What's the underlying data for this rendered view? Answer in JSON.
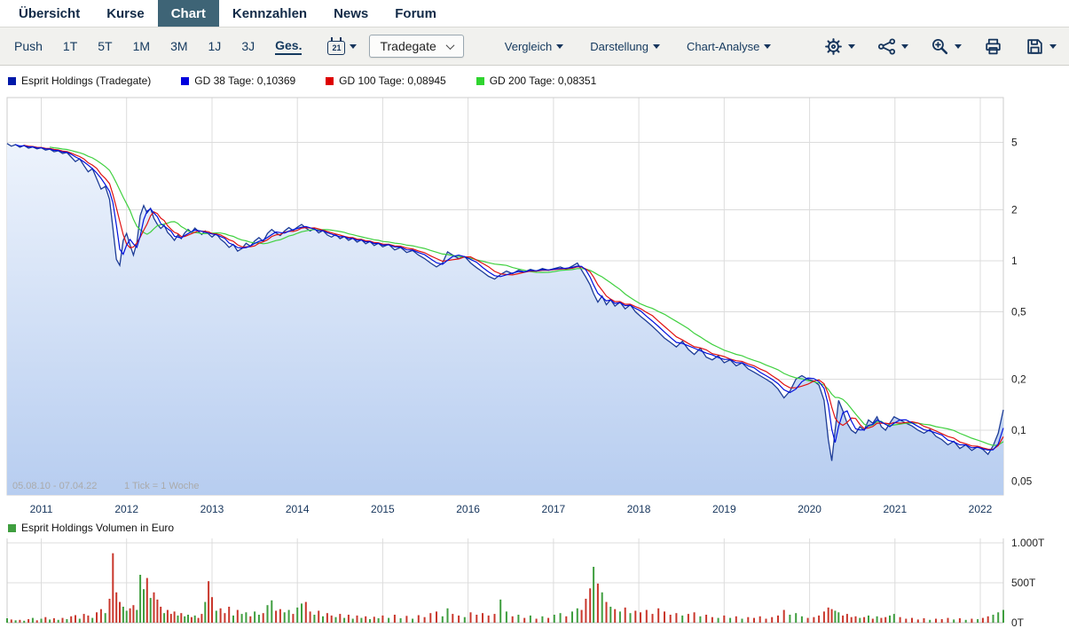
{
  "nav": {
    "items": [
      {
        "label": "Übersicht",
        "active": false
      },
      {
        "label": "Kurse",
        "active": false
      },
      {
        "label": "Chart",
        "active": true
      },
      {
        "label": "Kennzahlen",
        "active": false
      },
      {
        "label": "News",
        "active": false
      },
      {
        "label": "Forum",
        "active": false
      }
    ]
  },
  "toolbar": {
    "push_label": "Push",
    "ranges": [
      {
        "label": "1T"
      },
      {
        "label": "5T"
      },
      {
        "label": "1M"
      },
      {
        "label": "3M"
      },
      {
        "label": "1J"
      },
      {
        "label": "3J"
      },
      {
        "label": "Ges.",
        "active": true
      }
    ],
    "calendar_day": "21",
    "exchange": "Tradegate",
    "menus": [
      "Vergleich",
      "Darstellung",
      "Chart-Analyse"
    ],
    "icons": [
      "calendar-icon",
      "gear-icon",
      "indicator-nodes-icon",
      "zoom-in-icon",
      "printer-icon",
      "save-icon"
    ]
  },
  "legend": {
    "items": [
      {
        "label": "Esprit Holdings (Tradegate)",
        "color": "#0019a9"
      },
      {
        "label": "GD 38 Tage: 0,10369",
        "color": "#0000dd"
      },
      {
        "label": "GD 100 Tage: 0,08945",
        "color": "#dd0000"
      },
      {
        "label": "GD 200 Tage: 0,08351",
        "color": "#2fd42f"
      }
    ]
  },
  "volume_legend": {
    "label": "Esprit Holdings Volumen in Euro",
    "color": "#3f9e3f"
  },
  "chart_data": {
    "type": "line",
    "title": "Esprit Holdings (Tradegate)",
    "y_scale": "log",
    "grid": true,
    "legend_position": "top",
    "caption": "05.08.10 - 07.04.22",
    "tick_note": "1 Tick = 1 Woche",
    "x_range": [
      2010.6,
      2022.27
    ],
    "x_ticks": [
      2011,
      2012,
      2013,
      2014,
      2015,
      2016,
      2017,
      2018,
      2019,
      2020,
      2021,
      2022
    ],
    "y_ticks": [
      "5",
      "2",
      "1",
      "0,5",
      "0,2",
      "0,1",
      "0,05"
    ],
    "y_tick_values": [
      5,
      2,
      1,
      0.5,
      0.2,
      0.1,
      0.05
    ],
    "area_fill": [
      "#edf3fc",
      "#b7cdf0"
    ],
    "series": [
      {
        "id": "price",
        "name": "Esprit Holdings (Tradegate)",
        "color": "#1d3c96"
      },
      {
        "id": "gd38",
        "name": "GD 38 Tage",
        "value": "0,10369",
        "color": "#0011dd",
        "window": 3
      },
      {
        "id": "gd100",
        "name": "GD 100 Tage",
        "value": "0,08945",
        "color": "#e01212",
        "window": 5
      },
      {
        "id": "gd200",
        "name": "GD 200 Tage",
        "value": "0,08351",
        "color": "#3fd03f",
        "window": 11
      }
    ],
    "points_format": "[year, price_EUR, volume_T_EUR, down_flag]",
    "points": [
      [
        2010.6,
        4.92,
        55,
        0
      ],
      [
        2010.65,
        4.75,
        40,
        1
      ],
      [
        2010.7,
        4.85,
        30,
        0
      ],
      [
        2010.75,
        4.68,
        35,
        1
      ],
      [
        2010.8,
        4.8,
        25,
        0
      ],
      [
        2010.85,
        4.62,
        45,
        1
      ],
      [
        2010.9,
        4.7,
        60,
        0
      ],
      [
        2010.95,
        4.58,
        30,
        1
      ],
      [
        2011.0,
        4.65,
        50,
        0
      ],
      [
        2011.05,
        4.5,
        70,
        1
      ],
      [
        2011.1,
        4.56,
        40,
        0
      ],
      [
        2011.15,
        4.4,
        55,
        1
      ],
      [
        2011.2,
        4.46,
        35,
        0
      ],
      [
        2011.25,
        4.3,
        60,
        1
      ],
      [
        2011.3,
        4.36,
        45,
        0
      ],
      [
        2011.35,
        4.1,
        80,
        1
      ],
      [
        2011.4,
        3.85,
        95,
        1
      ],
      [
        2011.45,
        4.0,
        50,
        0
      ],
      [
        2011.5,
        3.65,
        110,
        1
      ],
      [
        2011.55,
        3.35,
        90,
        1
      ],
      [
        2011.6,
        3.5,
        60,
        0
      ],
      [
        2011.65,
        3.05,
        130,
        1
      ],
      [
        2011.7,
        2.65,
        170,
        1
      ],
      [
        2011.75,
        2.75,
        120,
        0
      ],
      [
        2011.8,
        2.3,
        300,
        1
      ],
      [
        2011.84,
        1.55,
        870,
        1
      ],
      [
        2011.88,
        1.02,
        380,
        1
      ],
      [
        2011.92,
        0.94,
        260,
        1
      ],
      [
        2011.96,
        1.32,
        200,
        0
      ],
      [
        2012.0,
        1.45,
        150,
        0
      ],
      [
        2012.04,
        1.24,
        180,
        1
      ],
      [
        2012.08,
        1.08,
        220,
        1
      ],
      [
        2012.12,
        1.28,
        160,
        0
      ],
      [
        2012.16,
        1.85,
        600,
        0
      ],
      [
        2012.2,
        2.12,
        420,
        0
      ],
      [
        2012.24,
        1.92,
        560,
        1
      ],
      [
        2012.28,
        2.04,
        310,
        0
      ],
      [
        2012.32,
        1.78,
        380,
        1
      ],
      [
        2012.36,
        1.64,
        290,
        1
      ],
      [
        2012.4,
        1.55,
        200,
        1
      ],
      [
        2012.44,
        1.62,
        120,
        0
      ],
      [
        2012.48,
        1.47,
        160,
        1
      ],
      [
        2012.52,
        1.4,
        110,
        1
      ],
      [
        2012.56,
        1.32,
        140,
        1
      ],
      [
        2012.6,
        1.42,
        90,
        0
      ],
      [
        2012.64,
        1.35,
        120,
        1
      ],
      [
        2012.68,
        1.46,
        80,
        0
      ],
      [
        2012.72,
        1.53,
        100,
        0
      ],
      [
        2012.76,
        1.47,
        70,
        1
      ],
      [
        2012.8,
        1.56,
        90,
        0
      ],
      [
        2012.84,
        1.49,
        60,
        1
      ],
      [
        2012.88,
        1.43,
        110,
        1
      ],
      [
        2012.92,
        1.5,
        260,
        0
      ],
      [
        2012.96,
        1.44,
        520,
        1
      ],
      [
        2013.0,
        1.38,
        320,
        1
      ],
      [
        2013.05,
        1.45,
        150,
        0
      ],
      [
        2013.1,
        1.34,
        180,
        1
      ],
      [
        2013.15,
        1.28,
        120,
        1
      ],
      [
        2013.2,
        1.2,
        200,
        1
      ],
      [
        2013.25,
        1.25,
        90,
        0
      ],
      [
        2013.3,
        1.14,
        160,
        1
      ],
      [
        2013.35,
        1.18,
        110,
        0
      ],
      [
        2013.4,
        1.27,
        130,
        0
      ],
      [
        2013.45,
        1.22,
        80,
        1
      ],
      [
        2013.5,
        1.31,
        140,
        0
      ],
      [
        2013.55,
        1.37,
        100,
        0
      ],
      [
        2013.6,
        1.3,
        120,
        1
      ],
      [
        2013.65,
        1.45,
        220,
        0
      ],
      [
        2013.7,
        1.53,
        280,
        0
      ],
      [
        2013.75,
        1.46,
        150,
        1
      ],
      [
        2013.8,
        1.41,
        170,
        1
      ],
      [
        2013.85,
        1.5,
        130,
        0
      ],
      [
        2013.9,
        1.57,
        160,
        0
      ],
      [
        2013.95,
        1.51,
        110,
        1
      ],
      [
        2014.0,
        1.58,
        190,
        0
      ],
      [
        2014.05,
        1.64,
        240,
        0
      ],
      [
        2014.1,
        1.56,
        260,
        1
      ],
      [
        2014.15,
        1.5,
        140,
        1
      ],
      [
        2014.2,
        1.55,
        100,
        0
      ],
      [
        2014.25,
        1.46,
        150,
        1
      ],
      [
        2014.3,
        1.51,
        80,
        0
      ],
      [
        2014.35,
        1.42,
        120,
        1
      ],
      [
        2014.4,
        1.38,
        90,
        1
      ],
      [
        2014.45,
        1.43,
        70,
        0
      ],
      [
        2014.5,
        1.35,
        110,
        1
      ],
      [
        2014.55,
        1.39,
        60,
        0
      ],
      [
        2014.6,
        1.32,
        100,
        1
      ],
      [
        2014.65,
        1.36,
        50,
        0
      ],
      [
        2014.7,
        1.29,
        90,
        1
      ],
      [
        2014.75,
        1.33,
        60,
        0
      ],
      [
        2014.8,
        1.26,
        80,
        1
      ],
      [
        2014.85,
        1.3,
        45,
        0
      ],
      [
        2014.9,
        1.23,
        75,
        1
      ],
      [
        2014.95,
        1.27,
        55,
        0
      ],
      [
        2015.0,
        1.21,
        90,
        1
      ],
      [
        2015.07,
        1.25,
        60,
        0
      ],
      [
        2015.14,
        1.16,
        100,
        1
      ],
      [
        2015.21,
        1.2,
        55,
        0
      ],
      [
        2015.28,
        1.12,
        85,
        1
      ],
      [
        2015.35,
        1.15,
        50,
        0
      ],
      [
        2015.42,
        1.08,
        95,
        1
      ],
      [
        2015.49,
        1.03,
        70,
        1
      ],
      [
        2015.56,
        0.97,
        120,
        1
      ],
      [
        2015.63,
        0.92,
        140,
        1
      ],
      [
        2015.7,
        0.97,
        80,
        0
      ],
      [
        2015.76,
        1.13,
        180,
        0
      ],
      [
        2015.82,
        1.08,
        110,
        1
      ],
      [
        2015.89,
        1.03,
        90,
        1
      ],
      [
        2015.96,
        1.06,
        70,
        0
      ],
      [
        2016.03,
        0.97,
        130,
        1
      ],
      [
        2016.1,
        0.91,
        100,
        1
      ],
      [
        2016.17,
        0.86,
        120,
        1
      ],
      [
        2016.24,
        0.81,
        90,
        1
      ],
      [
        2016.31,
        0.78,
        110,
        1
      ],
      [
        2016.38,
        0.83,
        290,
        0
      ],
      [
        2016.45,
        0.87,
        140,
        0
      ],
      [
        2016.52,
        0.84,
        80,
        1
      ],
      [
        2016.59,
        0.88,
        100,
        0
      ],
      [
        2016.66,
        0.86,
        60,
        1
      ],
      [
        2016.73,
        0.89,
        90,
        0
      ],
      [
        2016.8,
        0.87,
        50,
        1
      ],
      [
        2016.87,
        0.9,
        80,
        0
      ],
      [
        2016.94,
        0.88,
        60,
        1
      ],
      [
        2017.01,
        0.9,
        100,
        0
      ],
      [
        2017.08,
        0.92,
        120,
        0
      ],
      [
        2017.15,
        0.89,
        80,
        1
      ],
      [
        2017.22,
        0.93,
        140,
        0
      ],
      [
        2017.28,
        0.97,
        180,
        0
      ],
      [
        2017.33,
        0.88,
        160,
        1
      ],
      [
        2017.38,
        0.8,
        300,
        1
      ],
      [
        2017.43,
        0.72,
        430,
        1
      ],
      [
        2017.47,
        0.64,
        700,
        0
      ],
      [
        2017.52,
        0.57,
        490,
        1
      ],
      [
        2017.57,
        0.62,
        380,
        0
      ],
      [
        2017.62,
        0.55,
        260,
        1
      ],
      [
        2017.67,
        0.59,
        200,
        0
      ],
      [
        2017.72,
        0.54,
        170,
        1
      ],
      [
        2017.78,
        0.57,
        140,
        0
      ],
      [
        2017.84,
        0.52,
        190,
        1
      ],
      [
        2017.9,
        0.55,
        120,
        0
      ],
      [
        2017.96,
        0.5,
        150,
        1
      ],
      [
        2018.02,
        0.47,
        130,
        1
      ],
      [
        2018.09,
        0.44,
        160,
        1
      ],
      [
        2018.16,
        0.41,
        110,
        1
      ],
      [
        2018.23,
        0.38,
        180,
        1
      ],
      [
        2018.3,
        0.35,
        140,
        1
      ],
      [
        2018.37,
        0.33,
        100,
        1
      ],
      [
        2018.44,
        0.31,
        120,
        1
      ],
      [
        2018.51,
        0.335,
        90,
        0
      ],
      [
        2018.58,
        0.3,
        110,
        1
      ],
      [
        2018.65,
        0.28,
        130,
        1
      ],
      [
        2018.72,
        0.305,
        80,
        0
      ],
      [
        2018.79,
        0.27,
        100,
        1
      ],
      [
        2018.86,
        0.26,
        70,
        1
      ],
      [
        2018.93,
        0.275,
        60,
        0
      ],
      [
        2019.0,
        0.25,
        90,
        1
      ],
      [
        2019.07,
        0.26,
        60,
        0
      ],
      [
        2019.14,
        0.24,
        80,
        1
      ],
      [
        2019.21,
        0.25,
        50,
        0
      ],
      [
        2019.28,
        0.23,
        70,
        1
      ],
      [
        2019.35,
        0.22,
        60,
        1
      ],
      [
        2019.42,
        0.21,
        80,
        1
      ],
      [
        2019.49,
        0.2,
        50,
        1
      ],
      [
        2019.56,
        0.19,
        70,
        1
      ],
      [
        2019.63,
        0.175,
        90,
        1
      ],
      [
        2019.7,
        0.155,
        160,
        1
      ],
      [
        2019.77,
        0.17,
        100,
        0
      ],
      [
        2019.84,
        0.2,
        120,
        0
      ],
      [
        2019.91,
        0.21,
        80,
        0
      ],
      [
        2019.98,
        0.2,
        60,
        1
      ],
      [
        2020.05,
        0.195,
        70,
        1
      ],
      [
        2020.11,
        0.185,
        90,
        1
      ],
      [
        2020.17,
        0.15,
        140,
        1
      ],
      [
        2020.22,
        0.088,
        190,
        1
      ],
      [
        2020.26,
        0.066,
        170,
        1
      ],
      [
        2020.3,
        0.1,
        150,
        0
      ],
      [
        2020.34,
        0.15,
        130,
        0
      ],
      [
        2020.39,
        0.13,
        90,
        1
      ],
      [
        2020.44,
        0.11,
        110,
        1
      ],
      [
        2020.49,
        0.1,
        70,
        1
      ],
      [
        2020.54,
        0.096,
        80,
        1
      ],
      [
        2020.59,
        0.105,
        60,
        0
      ],
      [
        2020.64,
        0.1,
        70,
        1
      ],
      [
        2020.69,
        0.115,
        90,
        0
      ],
      [
        2020.74,
        0.11,
        50,
        1
      ],
      [
        2020.79,
        0.12,
        80,
        0
      ],
      [
        2020.84,
        0.105,
        60,
        1
      ],
      [
        2020.89,
        0.1,
        70,
        1
      ],
      [
        2020.94,
        0.11,
        90,
        0
      ],
      [
        2020.99,
        0.12,
        110,
        0
      ],
      [
        2021.06,
        0.115,
        70,
        1
      ],
      [
        2021.13,
        0.11,
        50,
        1
      ],
      [
        2021.2,
        0.106,
        60,
        1
      ],
      [
        2021.27,
        0.1,
        40,
        1
      ],
      [
        2021.34,
        0.096,
        55,
        1
      ],
      [
        2021.41,
        0.101,
        35,
        0
      ],
      [
        2021.48,
        0.092,
        50,
        1
      ],
      [
        2021.55,
        0.088,
        45,
        1
      ],
      [
        2021.62,
        0.082,
        60,
        1
      ],
      [
        2021.69,
        0.086,
        40,
        0
      ],
      [
        2021.76,
        0.078,
        55,
        1
      ],
      [
        2021.83,
        0.082,
        35,
        0
      ],
      [
        2021.9,
        0.076,
        50,
        1
      ],
      [
        2021.97,
        0.08,
        45,
        0
      ],
      [
        2022.03,
        0.077,
        60,
        1
      ],
      [
        2022.09,
        0.072,
        80,
        1
      ],
      [
        2022.15,
        0.081,
        100,
        0
      ],
      [
        2022.21,
        0.096,
        130,
        0
      ],
      [
        2022.27,
        0.132,
        160,
        0
      ]
    ],
    "volume": {
      "max": 1000,
      "y_ticks": [
        "1.000T",
        "500T",
        "0T"
      ],
      "tick_values": [
        1000,
        500,
        0
      ],
      "color_up": "#3f9e3f",
      "color_down": "#c9372c"
    }
  }
}
